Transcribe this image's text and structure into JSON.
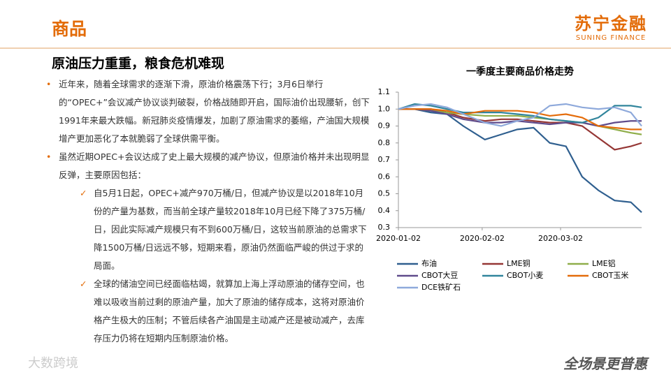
{
  "header": {
    "title": "商品",
    "logo": "苏宁金融",
    "logo_sub": "SUNING FINANCE"
  },
  "heading": "原油压力重重，粮食危机难现",
  "bullets": [
    {
      "text": "近年来，随着全球需求的逐渐下滑，原油价格震荡下行；3月6日举行的“OPEC+”会议减产协议谈判破裂，价格战随即开启，国际油价出现腰斩，创下1991年来最大跌幅。新冠肺炎疫情爆发，加剧了原油需求的萎缩，产油国大规模增产更加恶化了本就脆弱了全球供需平衡。"
    },
    {
      "text": "虽然近期OPEC+会议达成了史上最大规模的减产协议，但原油价格并未出现明显反弹，主要原因包括：",
      "sub": [
        "自5月1日起，OPEC+减产970万桶/日，但减产协议是以2018年10月份的产量为基数，而当前全球产量较2018年10月已经下降了375万桶/日，因此实际减产规模只有不到600万桶/日，这较当前原油的总需求下降1500万桶/日远远不够，短期来看，原油仍然面临严峻的供过于求的局面。",
        "全球的储油空间已经面临枯竭，就算加上海上浮动原油的储存空间，也难以吸收当前过剩的原油产量，加大了原油的储存成本，这将对原油价格产生极大的压制；不管后续各产油国是主动减产还是被动减产，去库存压力仍将在短期内压制原油价格。"
      ]
    }
  ],
  "footer": {
    "slogan": "全场景更普惠",
    "watermark": "大数跨境"
  },
  "chart_data": {
    "type": "line",
    "title": "一季度主要商品价格走势",
    "x": [
      "2020-01-02",
      "2020-01-08",
      "2020-01-14",
      "2020-01-20",
      "2020-01-26",
      "2020-02-03",
      "2020-02-09",
      "2020-02-15",
      "2020-02-21",
      "2020-02-27",
      "2020-03-04",
      "2020-03-10",
      "2020-03-16",
      "2020-03-22",
      "2020-03-28",
      "2020-04-01"
    ],
    "xlim": [
      "2020-01-02",
      "2020-04-01"
    ],
    "xticks": [
      "2020-01-02",
      "2020-02-02",
      "2020-03-02"
    ],
    "ylim": [
      0.3,
      1.1
    ],
    "yticks": [
      0.3,
      0.4,
      0.5,
      0.6,
      0.7,
      0.8,
      0.9,
      {
        "value": 1,
        "label": "1.0"
      },
      1.1
    ],
    "series": [
      {
        "name": "布油",
        "color": "#2f5f8f",
        "values": [
          1.0,
          1.0,
          0.98,
          0.97,
          0.9,
          0.82,
          0.85,
          0.88,
          0.89,
          0.8,
          0.78,
          0.6,
          0.52,
          0.46,
          0.45,
          0.39
        ]
      },
      {
        "name": "LME铜",
        "color": "#953735",
        "values": [
          1.0,
          1.0,
          1.0,
          0.98,
          0.95,
          0.93,
          0.94,
          0.94,
          0.93,
          0.92,
          0.92,
          0.9,
          0.83,
          0.76,
          0.78,
          0.8
        ]
      },
      {
        "name": "LME铝",
        "color": "#8fae4a",
        "values": [
          1.0,
          1.0,
          0.99,
          0.98,
          0.97,
          0.96,
          0.96,
          0.96,
          0.95,
          0.94,
          0.93,
          0.92,
          0.9,
          0.88,
          0.86,
          0.85
        ]
      },
      {
        "name": "CBOT大豆",
        "color": "#5f4b8b",
        "values": [
          1.0,
          1.0,
          0.99,
          0.97,
          0.94,
          0.92,
          0.92,
          0.93,
          0.92,
          0.91,
          0.92,
          0.92,
          0.9,
          0.92,
          0.93,
          0.93
        ]
      },
      {
        "name": "CBOT小麦",
        "color": "#31859c",
        "values": [
          1.0,
          1.03,
          1.02,
          1.0,
          0.98,
          0.98,
          0.98,
          0.97,
          0.96,
          0.94,
          0.93,
          0.92,
          0.95,
          1.02,
          1.02,
          1.01
        ]
      },
      {
        "name": "CBOT玉米",
        "color": "#e46c0a",
        "values": [
          1.0,
          1.0,
          1.0,
          0.99,
          0.97,
          0.99,
          0.99,
          0.99,
          0.98,
          0.96,
          0.97,
          0.95,
          0.9,
          0.89,
          0.88,
          0.88
        ]
      },
      {
        "name": "DCE铁矿石",
        "color": "#8ea9db",
        "values": [
          1.0,
          1.02,
          1.03,
          1.01,
          0.97,
          0.92,
          0.9,
          0.93,
          0.95,
          1.02,
          1.03,
          1.01,
          1.0,
          1.01,
          0.98,
          0.9
        ]
      }
    ]
  }
}
